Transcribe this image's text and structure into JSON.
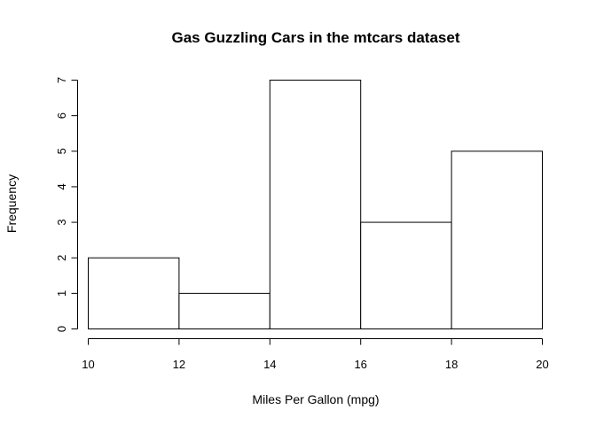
{
  "chart_data": {
    "type": "bar",
    "title": "Gas Guzzling Cars in the mtcars dataset",
    "xlabel": "Miles Per Gallon (mpg)",
    "ylabel": "Frequency",
    "bins": [
      {
        "from": 10,
        "to": 12,
        "count": 2
      },
      {
        "from": 12,
        "to": 14,
        "count": 1
      },
      {
        "from": 14,
        "to": 16,
        "count": 7
      },
      {
        "from": 16,
        "to": 18,
        "count": 3
      },
      {
        "from": 18,
        "to": 20,
        "count": 5
      }
    ],
    "xlim": [
      10,
      20
    ],
    "ylim": [
      0,
      7
    ],
    "x_ticks": [
      10,
      12,
      14,
      16,
      18,
      20
    ],
    "y_ticks": [
      0,
      1,
      2,
      3,
      4,
      5,
      6,
      7
    ],
    "grid": false,
    "legend": "none",
    "bar_fill": "#ffffff",
    "bar_stroke": "#000000"
  }
}
